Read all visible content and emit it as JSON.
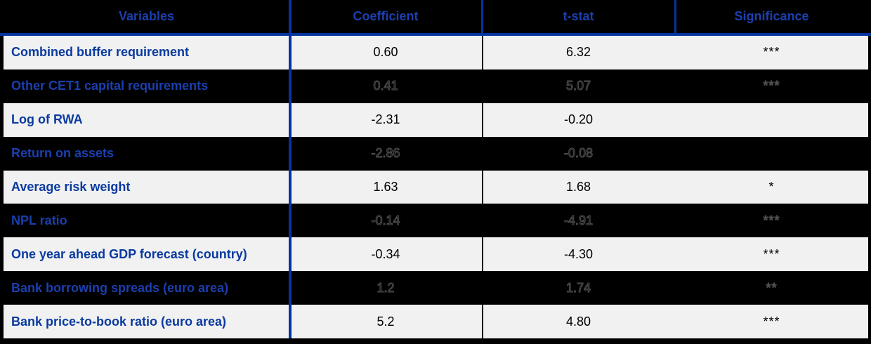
{
  "chart_data": {
    "type": "table",
    "title": "Regression results table",
    "columns": [
      "Variables",
      "Coefficient",
      "t-stat",
      "Significance"
    ],
    "rows": [
      {
        "variable": "Combined buffer requirement",
        "coefficient": "0.60",
        "t_stat": "6.32",
        "significance": "***",
        "shade": "light"
      },
      {
        "variable": "Other CET1 capital requirements",
        "coefficient": "0.41",
        "t_stat": "5.07",
        "significance": "***",
        "shade": "dark"
      },
      {
        "variable": "Log of RWA",
        "coefficient": "-2.31",
        "t_stat": "-0.20",
        "significance": "",
        "shade": "light"
      },
      {
        "variable": "Return on assets",
        "coefficient": "-2.86",
        "t_stat": "-0.08",
        "significance": "",
        "shade": "dark"
      },
      {
        "variable": "Average risk weight",
        "coefficient": "1.63",
        "t_stat": "1.68",
        "significance": "*",
        "shade": "light"
      },
      {
        "variable": "NPL ratio",
        "coefficient": "-0.14",
        "t_stat": "-4.91",
        "significance": "***",
        "shade": "dark"
      },
      {
        "variable": "One year ahead GDP forecast (country)",
        "coefficient": "-0.34",
        "t_stat": "-4.30",
        "significance": "***",
        "shade": "light"
      },
      {
        "variable": "Bank borrowing spreads (euro area)",
        "coefficient": "1.2",
        "t_stat": "1.74",
        "significance": "**",
        "shade": "dark"
      },
      {
        "variable": "Bank price-to-book ratio (euro area)",
        "coefficient": "5.2",
        "t_stat": "4.80",
        "significance": "***",
        "shade": "light"
      }
    ],
    "layout": {
      "legend": "none",
      "grid": "alternating row shading with blue column rules"
    },
    "colors": {
      "background": "#000000",
      "light_row": "#f1f1f2",
      "dark_row": "#000000",
      "rule_blue": "#0433a0",
      "header_text": "#1c3fae",
      "label_text_light_row": "#0a3a9e",
      "label_text_dark_row": "#1c3fae",
      "value_text": "#000000",
      "ghost_value_outline": "#4f4f4f"
    }
  }
}
